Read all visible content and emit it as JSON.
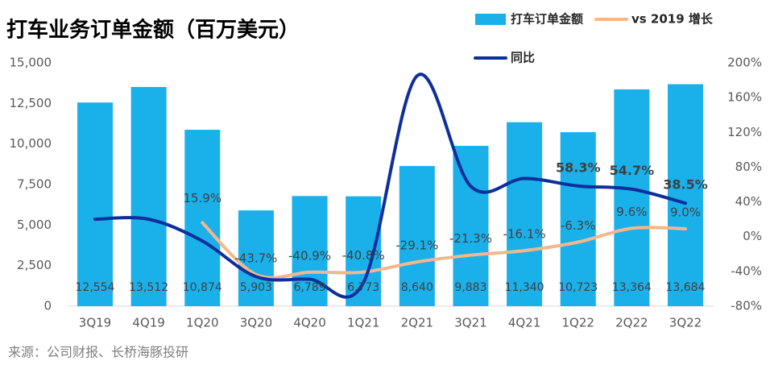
{
  "chart_data": {
    "type": "bar",
    "title": "打车业务订单金额（百万美元）",
    "source": "来源：公司财报、长桥海豚投研",
    "categories": [
      "3Q19",
      "4Q19",
      "1Q20",
      "3Q20",
      "4Q20",
      "1Q21",
      "2Q21",
      "3Q21",
      "4Q21",
      "1Q22",
      "2Q22",
      "3Q22"
    ],
    "ylim": [
      0,
      15000
    ],
    "yticks": [
      0,
      {
        "value": 2500,
        "label": "2,500"
      },
      {
        "value": 5000,
        "label": "5,000"
      },
      {
        "value": 7500,
        "label": "7,500"
      },
      {
        "value": 10000,
        "label": "10,000"
      },
      {
        "value": 12500,
        "label": "12,500"
      },
      {
        "value": 15000,
        "label": "15,000"
      }
    ],
    "y2lim": [
      -80,
      200
    ],
    "y2ticks": [
      {
        "value": -80,
        "label": "-80%"
      },
      {
        "value": -40,
        "label": "-40%"
      },
      {
        "value": 0,
        "label": "0%"
      },
      {
        "value": 40,
        "label": "40%"
      },
      {
        "value": 80,
        "label": "80%"
      },
      {
        "value": 120,
        "label": "120%"
      },
      {
        "value": 160,
        "label": "160%"
      },
      {
        "value": 200,
        "label": "200%"
      }
    ],
    "series": [
      {
        "name": "打车订单金额",
        "type": "bar",
        "color": "#1ab0ea",
        "values": [
          12554,
          13512,
          10874,
          5903,
          6789,
          6773,
          8640,
          9883,
          11340,
          10723,
          13364,
          13684
        ],
        "value_labels": [
          "12,554",
          "13,512",
          "10,874",
          "5,903",
          "6,789",
          "6,773",
          "8,640",
          "9,883",
          "11,340",
          "10,723",
          "13,364",
          "13,684"
        ]
      },
      {
        "name": "vs 2019 增长",
        "type": "line",
        "axis": "y2",
        "color": "#f5b68c",
        "values": [
          null,
          null,
          15.9,
          -43.7,
          -40.9,
          -40.8,
          -29.1,
          -21.3,
          -16.1,
          -6.3,
          9.6,
          9.0
        ],
        "value_labels": [
          null,
          null,
          "15.9%",
          "-43.7%",
          "-40.9%",
          "-40.8%",
          "-29.1%",
          "-21.3%",
          "-16.1%",
          "-6.3%",
          "9.6%",
          "9.0%"
        ]
      },
      {
        "name": "同比",
        "type": "line",
        "axis": "y2",
        "color": "#0e2f9b",
        "values": [
          20,
          20,
          -5,
          -46,
          -49,
          -53,
          185,
          58,
          67,
          58.3,
          54.7,
          38.5
        ],
        "value_labels": [
          null,
          null,
          null,
          null,
          null,
          null,
          null,
          null,
          null,
          "58.3%",
          "54.7%",
          "38.5%"
        ]
      }
    ]
  }
}
